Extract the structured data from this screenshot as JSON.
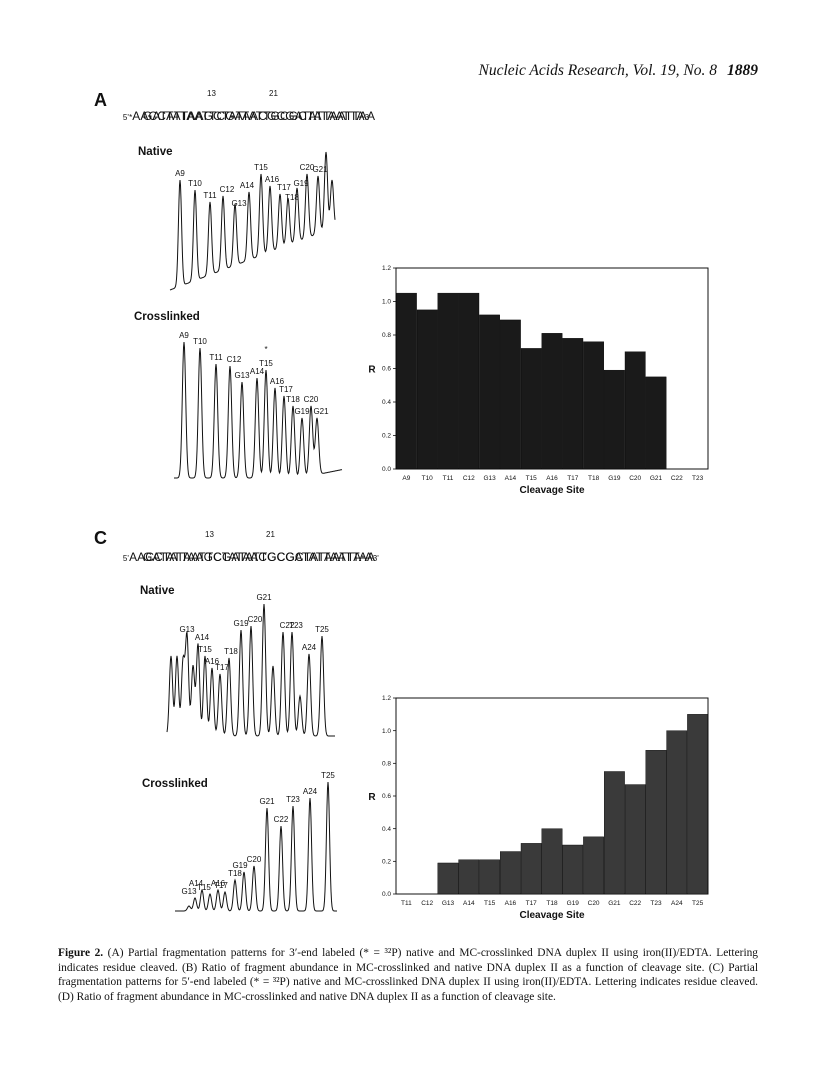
{
  "header": {
    "journal": "Nucleic Acids Research, Vol. 19, No. 8",
    "page": "1889"
  },
  "panelA": {
    "letter": "A",
    "seq_top_prefix": "5'",
    "seq_top_star": "*",
    "seq_top": "AACCTATAATTCGATATTGCGCTATAATTA",
    "seq_top_end": "3'",
    "num_13": "13",
    "num_21": "21",
    "seq_bottom": "GATATTAAGCTATAACGCGATATTAATTAA",
    "native_label": "Native",
    "crosslinked_label": "Crosslinked",
    "native_peaks": [
      "A9",
      "T10",
      "T11",
      "C12",
      "G13",
      "A14",
      "T15",
      "A16",
      "T17",
      "T18",
      "G19",
      "C20",
      "G21"
    ],
    "crosslinked_peaks": [
      "A9",
      "T10",
      "T11",
      "C12",
      "G13",
      "A14",
      "T15",
      "A16",
      "T17",
      "T18",
      "G19",
      "C20",
      "G21"
    ],
    "crosslinked_star": "*"
  },
  "panelC": {
    "letter": "C",
    "seq_top_prefix": "5'",
    "seq_top": "AACCTATAATTCGATATTGCGCTATAATTA",
    "seq_top_star": "*",
    "seq_top_tail": "A",
    "seq_top_end": "3'",
    "num_13": "13",
    "num_21": "21",
    "seq_bottom": "GATATTAAGCTATAACGCGATATTAATTAA",
    "native_label": "Native",
    "crosslinked_label": "Crosslinked",
    "native_peaks": [
      "G13",
      "A14",
      "T15",
      "A16",
      "T17",
      "T18",
      "G19",
      "C20",
      "G21",
      "C22",
      "T23",
      "A24",
      "T25"
    ],
    "crosslinked_peaks": [
      "G13",
      "A14",
      "T15",
      "A16",
      "T17",
      "T18",
      "G19",
      "C20",
      "G21",
      "C22",
      "T23",
      "A24",
      "T25"
    ]
  },
  "chart_data": [
    {
      "panel": "B",
      "type": "bar",
      "categories": [
        "A9",
        "T10",
        "T11",
        "C12",
        "G13",
        "A14",
        "T15",
        "A16",
        "T17",
        "T18",
        "G19",
        "C20",
        "G21",
        "C22",
        "T23"
      ],
      "values": [
        1.05,
        0.95,
        1.05,
        1.05,
        0.92,
        0.89,
        0.72,
        0.81,
        0.78,
        0.76,
        0.59,
        0.7,
        0.55,
        null,
        null
      ],
      "xlabel": "Cleavage Site",
      "ylabel": "R",
      "ylim": [
        0.0,
        1.2
      ],
      "yticks": [
        "0.0",
        "0.2",
        "0.4",
        "0.6",
        "0.8",
        "1.0",
        "1.2"
      ],
      "bar_color": "#1a1a1a"
    },
    {
      "panel": "D",
      "type": "bar",
      "categories": [
        "T11",
        "C12",
        "G13",
        "A14",
        "T15",
        "A16",
        "T17",
        "T18",
        "G19",
        "C20",
        "G21",
        "C22",
        "T23",
        "A24",
        "T25"
      ],
      "values": [
        null,
        null,
        0.19,
        0.21,
        0.21,
        0.26,
        0.31,
        0.4,
        0.3,
        0.35,
        0.75,
        0.67,
        0.88,
        1.0,
        1.1
      ],
      "xlabel": "Cleavage Site",
      "ylabel": "R",
      "ylim": [
        0.0,
        1.2
      ],
      "yticks": [
        "0.0",
        "0.2",
        "0.4",
        "0.6",
        "0.8",
        "1.0",
        "1.2"
      ],
      "bar_color": "#3a3a3a"
    }
  ],
  "caption": {
    "label": "Figure 2.",
    "text": " (A) Partial fragmentation patterns for 3′-end labeled (* = ³²P) native and MC-crosslinked DNA duplex II using iron(II)/EDTA. Lettering indicates residue cleaved. (B) Ratio of fragment abundance in MC-crosslinked and native DNA duplex II as a function of cleavage site. (C) Partial fragmentation patterns for 5′-end labeled (* = ³²P) native and MC-crosslinked DNA duplex II using iron(II)/EDTA. Lettering indicates residue cleaved. (D) Ratio of fragment abundance in MC-crosslinked and native DNA duplex II as a function of cleavage site."
  }
}
